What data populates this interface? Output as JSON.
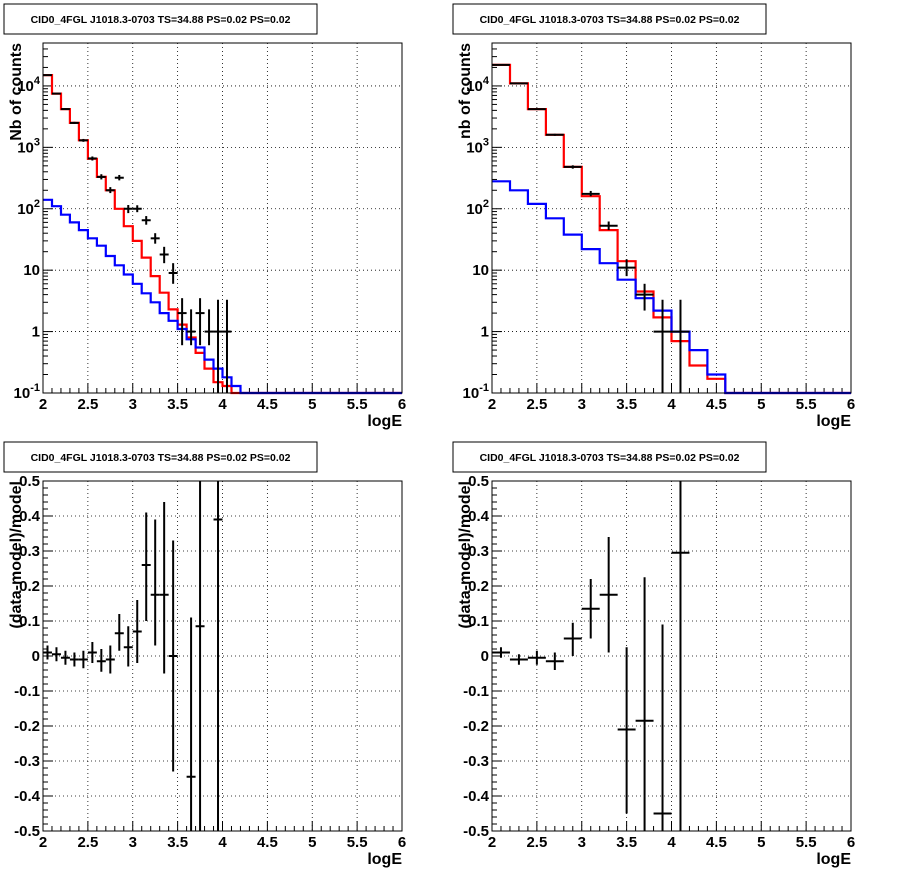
{
  "panels": [
    {
      "title": "CID0_4FGL J1018.3-0703 TS=34.88 PS=0.02 PS=0.02",
      "xlabel": "logE",
      "ylabel": "Nb of counts",
      "chart_data": {
        "type": "line",
        "scale_y": "log",
        "xlim": [
          2,
          6
        ],
        "ylim": [
          0.1,
          50000
        ],
        "grid": true,
        "xticks": [
          "2",
          "2.5",
          "3",
          "3.5",
          "4",
          "4.5",
          "5",
          "5.5",
          "6"
        ],
        "yticks": [
          {
            "v": 0.1,
            "label": "10^-1"
          },
          {
            "v": 1,
            "label": "1"
          },
          {
            "v": 10,
            "label": "10"
          },
          {
            "v": 100,
            "label": "10^2"
          },
          {
            "v": 1000,
            "label": "10^3"
          },
          {
            "v": 10000,
            "label": "10^4"
          }
        ],
        "bin_edges": [
          2.0,
          2.1,
          2.2,
          2.3,
          2.4,
          2.5,
          2.6,
          2.7,
          2.8,
          2.9,
          3.0,
          3.1,
          3.2,
          3.3,
          3.4,
          3.5,
          3.6,
          3.7,
          3.8,
          3.9,
          4.0,
          4.1,
          4.2,
          4.3,
          4.4,
          4.5,
          4.6,
          4.7,
          4.8,
          4.9,
          5.0,
          5.1,
          5.2,
          5.3,
          5.4,
          5.5,
          5.6,
          5.7,
          5.8,
          5.9,
          6.0
        ],
        "series": [
          {
            "color": "#ff0000",
            "style": "step",
            "values": [
              15000,
              7500,
              4200,
              2500,
              1300,
              650,
              330,
              200,
              100,
              52,
              30,
              16,
              8,
              4.3,
              2.3,
              1.3,
              0.8,
              0.45,
              0.25,
              0.15,
              0.13,
              0.1,
              0.1,
              0.1,
              0.1,
              0.1,
              0.1,
              0.1,
              0.1,
              0.1,
              0.1,
              0.1,
              0.1,
              0.1,
              0.1,
              0.1,
              0.1,
              0.1,
              0.1,
              0.1
            ]
          },
          {
            "color": "#0000ff",
            "style": "step",
            "values": [
              140,
              110,
              80,
              60,
              45,
              33,
              25,
              17,
              12,
              8.5,
              6,
              4.2,
              3,
              2,
              1.5,
              1.1,
              0.75,
              0.55,
              0.35,
              0.25,
              0.18,
              0.13,
              0.1,
              0.1,
              0.1,
              0.1,
              0.1,
              0.1,
              0.1,
              0.1,
              0.1,
              0.1,
              0.1,
              0.1,
              0.1,
              0.1,
              0.1,
              0.1,
              0.1,
              0.1
            ]
          },
          {
            "color": "#000000",
            "style": "errorbars",
            "points": [
              {
                "x": 2.05,
                "y": 15000,
                "lo": 14800,
                "hi": 15200,
                "xerr": 0.05
              },
              {
                "x": 2.15,
                "y": 7500,
                "lo": 7350,
                "hi": 7650,
                "xerr": 0.05
              },
              {
                "x": 2.25,
                "y": 4200,
                "lo": 4080,
                "hi": 4330,
                "xerr": 0.05
              },
              {
                "x": 2.35,
                "y": 2500,
                "lo": 2400,
                "hi": 2600,
                "xerr": 0.05
              },
              {
                "x": 2.45,
                "y": 1300,
                "lo": 1230,
                "hi": 1370,
                "xerr": 0.05
              },
              {
                "x": 2.55,
                "y": 660,
                "lo": 610,
                "hi": 710,
                "xerr": 0.05
              },
              {
                "x": 2.65,
                "y": 330,
                "lo": 300,
                "hi": 365,
                "xerr": 0.05
              },
              {
                "x": 2.75,
                "y": 200,
                "lo": 180,
                "hi": 225,
                "xerr": 0.05
              },
              {
                "x": 2.85,
                "y": 320,
                "lo": 290,
                "hi": 355,
                "xerr": 0.05
              },
              {
                "x": 2.95,
                "y": 100,
                "lo": 85,
                "hi": 115,
                "xerr": 0.05
              },
              {
                "x": 3.05,
                "y": 100,
                "lo": 88,
                "hi": 114,
                "xerr": 0.05
              },
              {
                "x": 3.15,
                "y": 65,
                "lo": 55,
                "hi": 76,
                "xerr": 0.05
              },
              {
                "x": 3.25,
                "y": 33,
                "lo": 27,
                "hi": 40,
                "xerr": 0.05
              },
              {
                "x": 3.35,
                "y": 18,
                "lo": 13,
                "hi": 24,
                "xerr": 0.05
              },
              {
                "x": 3.45,
                "y": 9,
                "lo": 6,
                "hi": 13,
                "xerr": 0.05
              },
              {
                "x": 3.55,
                "y": 2,
                "lo": 0.6,
                "hi": 3.5,
                "xerr": 0.05
              },
              {
                "x": 3.65,
                "y": 1,
                "lo": 0.6,
                "hi": 2.3,
                "xerr": 0.05
              },
              {
                "x": 3.75,
                "y": 2,
                "lo": 0.6,
                "hi": 3.5,
                "xerr": 0.05
              },
              {
                "x": 3.85,
                "y": 1,
                "lo": 0.6,
                "hi": 2.3,
                "xerr": 0.05
              },
              {
                "x": 3.95,
                "y": 1,
                "lo": 0.1,
                "hi": 3.3,
                "xerr": 0.05
              },
              {
                "x": 4.05,
                "y": 1,
                "lo": 0.1,
                "hi": 3.3,
                "xerr": 0.05
              }
            ]
          }
        ]
      }
    },
    {
      "title": "CID0_4FGL J1018.3-0703 TS=34.88 PS=0.02 PS=0.02",
      "xlabel": "logE",
      "ylabel": "nb of counts",
      "chart_data": {
        "type": "line",
        "scale_y": "log",
        "xlim": [
          2,
          6
        ],
        "ylim": [
          0.1,
          50000
        ],
        "grid": true,
        "xticks": [
          "2",
          "2.5",
          "3",
          "3.5",
          "4",
          "4.5",
          "5",
          "5.5",
          "6"
        ],
        "yticks": [
          {
            "v": 0.1,
            "label": "10^-1"
          },
          {
            "v": 1,
            "label": "1"
          },
          {
            "v": 10,
            "label": "10"
          },
          {
            "v": 100,
            "label": "10^2"
          },
          {
            "v": 1000,
            "label": "10^3"
          },
          {
            "v": 10000,
            "label": "10^4"
          }
        ],
        "bin_edges": [
          2.0,
          2.2,
          2.4,
          2.6,
          2.8,
          3.0,
          3.2,
          3.4,
          3.6,
          3.8,
          4.0,
          4.2,
          4.4,
          4.6,
          4.8,
          5.0,
          5.2,
          5.4,
          5.6,
          5.8,
          6.0
        ],
        "series": [
          {
            "color": "#ff0000",
            "style": "step",
            "values": [
              22000,
              11000,
              4200,
              1600,
              480,
              160,
              45,
              14,
              4.5,
              1.7,
              0.7,
              0.28,
              0.17,
              0.1,
              0.1,
              0.1,
              0.1,
              0.1,
              0.1,
              0.1
            ]
          },
          {
            "color": "#0000ff",
            "style": "step",
            "values": [
              280,
              200,
              120,
              70,
              38,
              22,
              13,
              7,
              3.5,
              2.2,
              1,
              0.5,
              0.2,
              0.1,
              0.1,
              0.1,
              0.1,
              0.1,
              0.1,
              0.1
            ]
          },
          {
            "color": "#000000",
            "style": "errorbars",
            "points": [
              {
                "x": 2.1,
                "y": 22000,
                "lo": 21800,
                "hi": 22200,
                "xerr": 0.1
              },
              {
                "x": 2.3,
                "y": 11000,
                "lo": 10850,
                "hi": 11150,
                "xerr": 0.1
              },
              {
                "x": 2.5,
                "y": 4200,
                "lo": 4100,
                "hi": 4300,
                "xerr": 0.1
              },
              {
                "x": 2.7,
                "y": 1600,
                "lo": 1540,
                "hi": 1660,
                "xerr": 0.1
              },
              {
                "x": 2.9,
                "y": 480,
                "lo": 450,
                "hi": 510,
                "xerr": 0.1
              },
              {
                "x": 3.1,
                "y": 175,
                "lo": 160,
                "hi": 195,
                "xerr": 0.1
              },
              {
                "x": 3.3,
                "y": 53,
                "lo": 45,
                "hi": 62,
                "xerr": 0.1
              },
              {
                "x": 3.5,
                "y": 11,
                "lo": 8,
                "hi": 15,
                "xerr": 0.1
              },
              {
                "x": 3.7,
                "y": 4,
                "lo": 2.2,
                "hi": 6,
                "xerr": 0.1
              },
              {
                "x": 3.9,
                "y": 1,
                "lo": 0.1,
                "hi": 3.3,
                "xerr": 0.1
              },
              {
                "x": 4.1,
                "y": 1,
                "lo": 0.1,
                "hi": 3.3,
                "xerr": 0.1
              }
            ]
          }
        ]
      }
    },
    {
      "title": "CID0_4FGL J1018.3-0703 TS=34.88 PS=0.02 PS=0.02",
      "xlabel": "logE",
      "ylabel": "(data-model)/model",
      "chart_data": {
        "type": "scatter",
        "scale_y": "linear",
        "xlim": [
          2,
          6
        ],
        "ylim": [
          -0.5,
          0.5
        ],
        "grid": true,
        "xticks": [
          "2",
          "2.5",
          "3",
          "3.5",
          "4",
          "4.5",
          "5",
          "5.5",
          "6"
        ],
        "yticks": [
          {
            "v": -0.5,
            "label": "-0.5"
          },
          {
            "v": -0.4,
            "label": "-0.4"
          },
          {
            "v": -0.3,
            "label": "-0.3"
          },
          {
            "v": -0.2,
            "label": "-0.2"
          },
          {
            "v": -0.1,
            "label": "-0.1"
          },
          {
            "v": 0,
            "label": "0"
          },
          {
            "v": 0.1,
            "label": "0.1"
          },
          {
            "v": 0.2,
            "label": "0.2"
          },
          {
            "v": 0.3,
            "label": "0.3"
          },
          {
            "v": 0.4,
            "label": "0.4"
          },
          {
            "v": 0.5,
            "label": "0.5"
          }
        ],
        "series": [
          {
            "color": "#000000",
            "style": "errorbars",
            "points": [
              {
                "x": 2.05,
                "y": 0.01,
                "lo": -0.01,
                "hi": 0.03,
                "xerr": 0.05
              },
              {
                "x": 2.15,
                "y": 0.005,
                "lo": -0.015,
                "hi": 0.025,
                "xerr": 0.05
              },
              {
                "x": 2.25,
                "y": -0.005,
                "lo": -0.025,
                "hi": 0.015,
                "xerr": 0.05
              },
              {
                "x": 2.35,
                "y": -0.01,
                "lo": -0.03,
                "hi": 0.01,
                "xerr": 0.05
              },
              {
                "x": 2.45,
                "y": -0.01,
                "lo": -0.035,
                "hi": 0.015,
                "xerr": 0.05
              },
              {
                "x": 2.55,
                "y": 0.01,
                "lo": -0.02,
                "hi": 0.04,
                "xerr": 0.05
              },
              {
                "x": 2.65,
                "y": -0.015,
                "lo": -0.045,
                "hi": 0.02,
                "xerr": 0.05
              },
              {
                "x": 2.75,
                "y": -0.01,
                "lo": -0.05,
                "hi": 0.03,
                "xerr": 0.05
              },
              {
                "x": 2.85,
                "y": 0.065,
                "lo": 0.015,
                "hi": 0.12,
                "xerr": 0.05
              },
              {
                "x": 2.95,
                "y": 0.025,
                "lo": -0.03,
                "hi": 0.085,
                "xerr": 0.05
              },
              {
                "x": 3.05,
                "y": 0.07,
                "lo": -0.02,
                "hi": 0.16,
                "xerr": 0.05
              },
              {
                "x": 3.15,
                "y": 0.26,
                "lo": 0.1,
                "hi": 0.41,
                "xerr": 0.05
              },
              {
                "x": 3.25,
                "y": 0.175,
                "lo": 0.03,
                "hi": 0.39,
                "xerr": 0.05
              },
              {
                "x": 3.35,
                "y": 0.175,
                "lo": -0.05,
                "hi": 0.44,
                "xerr": 0.05
              },
              {
                "x": 3.45,
                "y": 0.0,
                "lo": -0.33,
                "hi": 0.33,
                "xerr": 0.05
              },
              {
                "x": 3.65,
                "y": -0.345,
                "lo": -0.5,
                "hi": 0.11,
                "xerr": 0.05
              },
              {
                "x": 3.75,
                "y": 0.085,
                "lo": -0.5,
                "hi": 0.5,
                "xerr": 0.05
              },
              {
                "x": 3.95,
                "y": 0.39,
                "lo": -0.5,
                "hi": 0.5,
                "xerr": 0.05
              }
            ]
          }
        ]
      }
    },
    {
      "title": "CID0_4FGL J1018.3-0703 TS=34.88 PS=0.02 PS=0.02",
      "xlabel": "logE",
      "ylabel": "(data-model)/model",
      "chart_data": {
        "type": "scatter",
        "scale_y": "linear",
        "xlim": [
          2,
          6
        ],
        "ylim": [
          -0.5,
          0.5
        ],
        "grid": true,
        "xticks": [
          "2",
          "2.5",
          "3",
          "3.5",
          "4",
          "4.5",
          "5",
          "5.5",
          "6"
        ],
        "yticks": [
          {
            "v": -0.5,
            "label": "-0.5"
          },
          {
            "v": -0.4,
            "label": "-0.4"
          },
          {
            "v": -0.3,
            "label": "-0.3"
          },
          {
            "v": -0.2,
            "label": "-0.2"
          },
          {
            "v": -0.1,
            "label": "-0.1"
          },
          {
            "v": 0,
            "label": "0"
          },
          {
            "v": 0.1,
            "label": "0.1"
          },
          {
            "v": 0.2,
            "label": "0.2"
          },
          {
            "v": 0.3,
            "label": "0.3"
          },
          {
            "v": 0.4,
            "label": "0.4"
          },
          {
            "v": 0.5,
            "label": "0.5"
          }
        ],
        "series": [
          {
            "color": "#000000",
            "style": "errorbars",
            "points": [
              {
                "x": 2.1,
                "y": 0.01,
                "lo": -0.005,
                "hi": 0.025,
                "xerr": 0.1
              },
              {
                "x": 2.3,
                "y": -0.01,
                "lo": -0.025,
                "hi": 0.005,
                "xerr": 0.1
              },
              {
                "x": 2.5,
                "y": -0.005,
                "lo": -0.025,
                "hi": 0.015,
                "xerr": 0.1
              },
              {
                "x": 2.7,
                "y": -0.015,
                "lo": -0.04,
                "hi": 0.01,
                "xerr": 0.1
              },
              {
                "x": 2.9,
                "y": 0.05,
                "lo": 0.0,
                "hi": 0.095,
                "xerr": 0.1
              },
              {
                "x": 3.1,
                "y": 0.135,
                "lo": 0.05,
                "hi": 0.22,
                "xerr": 0.1
              },
              {
                "x": 3.3,
                "y": 0.175,
                "lo": 0.01,
                "hi": 0.34,
                "xerr": 0.1
              },
              {
                "x": 3.5,
                "y": -0.21,
                "lo": -0.45,
                "hi": 0.025,
                "xerr": 0.1
              },
              {
                "x": 3.7,
                "y": -0.185,
                "lo": -0.5,
                "hi": 0.225,
                "xerr": 0.1
              },
              {
                "x": 3.9,
                "y": -0.45,
                "lo": -0.5,
                "hi": 0.09,
                "xerr": 0.1
              },
              {
                "x": 4.1,
                "y": 0.295,
                "lo": -0.5,
                "hi": 0.5,
                "xerr": 0.1
              }
            ]
          }
        ]
      }
    }
  ]
}
